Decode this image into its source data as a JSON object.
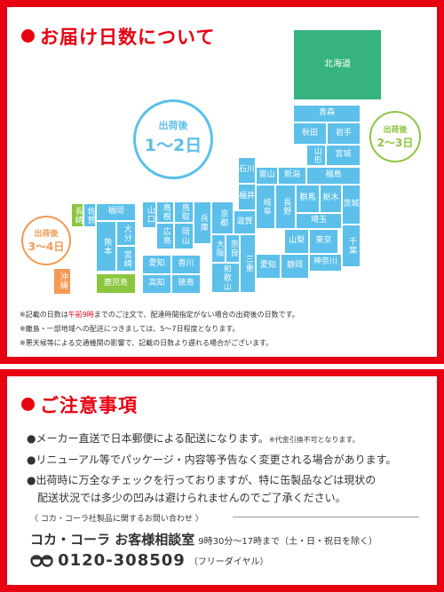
{
  "delivery": {
    "title": "お届け日数について",
    "badges": {
      "center": {
        "label": "出荷後",
        "days": "1〜2日"
      },
      "right": {
        "label": "出荷後",
        "days": "2〜3日"
      },
      "left": {
        "label": "出荷後",
        "days": "3〜4日"
      }
    },
    "prefectures": {
      "hokkaido": "北海道",
      "aomori": "青森",
      "akita": "秋田",
      "iwate": "岩手",
      "yamagata": "山形",
      "miyagi": "宮城",
      "ishikawa": "石川",
      "fukui": "福井",
      "toyama": "富山",
      "niigata": "新潟",
      "fukushima": "福島",
      "gunma": "群馬",
      "tochigi": "栃木",
      "ibaraki": "茨城",
      "gifu": "岐阜",
      "nagano": "長野",
      "saitama": "埼玉",
      "yamanashi": "山梨",
      "tokyo": "東京",
      "chiba": "千葉",
      "aichi": "愛知",
      "shizuoka": "静岡",
      "kanagawa": "神奈川",
      "kyoto": "京都",
      "shiga": "滋賀",
      "osaka": "大阪",
      "nara": "奈良",
      "mie": "三重",
      "wakayama": "和歌山",
      "hyogo": "兵庫",
      "shimane": "島根",
      "tottori": "鳥取",
      "yamaguchi": "山口",
      "hiroshima": "広島",
      "okayama": "岡山",
      "ehime": "愛知",
      "kagawa": "香川",
      "kochi": "高知",
      "tokushima": "徳島",
      "nagasaki": "長崎",
      "saga": "佐賀",
      "fukuoka": "福岡",
      "kumamoto": "熊本",
      "oita": "大分",
      "miyazaki": "宮崎",
      "kagoshima": "鹿児島",
      "okinawa": "沖縄"
    },
    "notes": {
      "note1_prefix": "※記載の日数は",
      "note1_time": "午前9時",
      "note1_suffix": "までのご注文で、配達時間指定がない場合の出荷後の日数です。",
      "note2": "※離島・一部地域への配送につきましては、5〜7日程度となります。",
      "note3": "※悪天候等による交通機関の影響で、記載の日数より遅れる場合がございます。"
    }
  },
  "caution": {
    "title": "ご注意事項",
    "item1": "●メーカー直送で日本郵便による配送になります。",
    "item1_small": "※代金引換不可となります。",
    "item2": "●リニューアル等でパッケージ・内容等予告なく変更される場合があります。",
    "item3_line1": "●出荷時に万全なチェックを行っておりますが、特に缶製品などは現状の",
    "item3_line2": "配送状況では多少の凹みは避けられませんのでご了承ください。"
  },
  "contact": {
    "inquiry_label": "〈 コカ・コーラ社製品に関するお問い合わせ 〉",
    "name": "コカ・コーラ お客様相談室",
    "hours": "9時30分〜17時まで（土・日・祝日を除く）",
    "phone": "0120-308509",
    "phone_note": "（フリーダイヤル）",
    "freedial_icon": "freedial-icon"
  },
  "colors": {
    "brand_red": "#e60012",
    "map_blue": "#5cc0ea",
    "map_green": "#8cc63f",
    "map_orange": "#f39a54",
    "hokkaido_green": "#36b37e"
  }
}
